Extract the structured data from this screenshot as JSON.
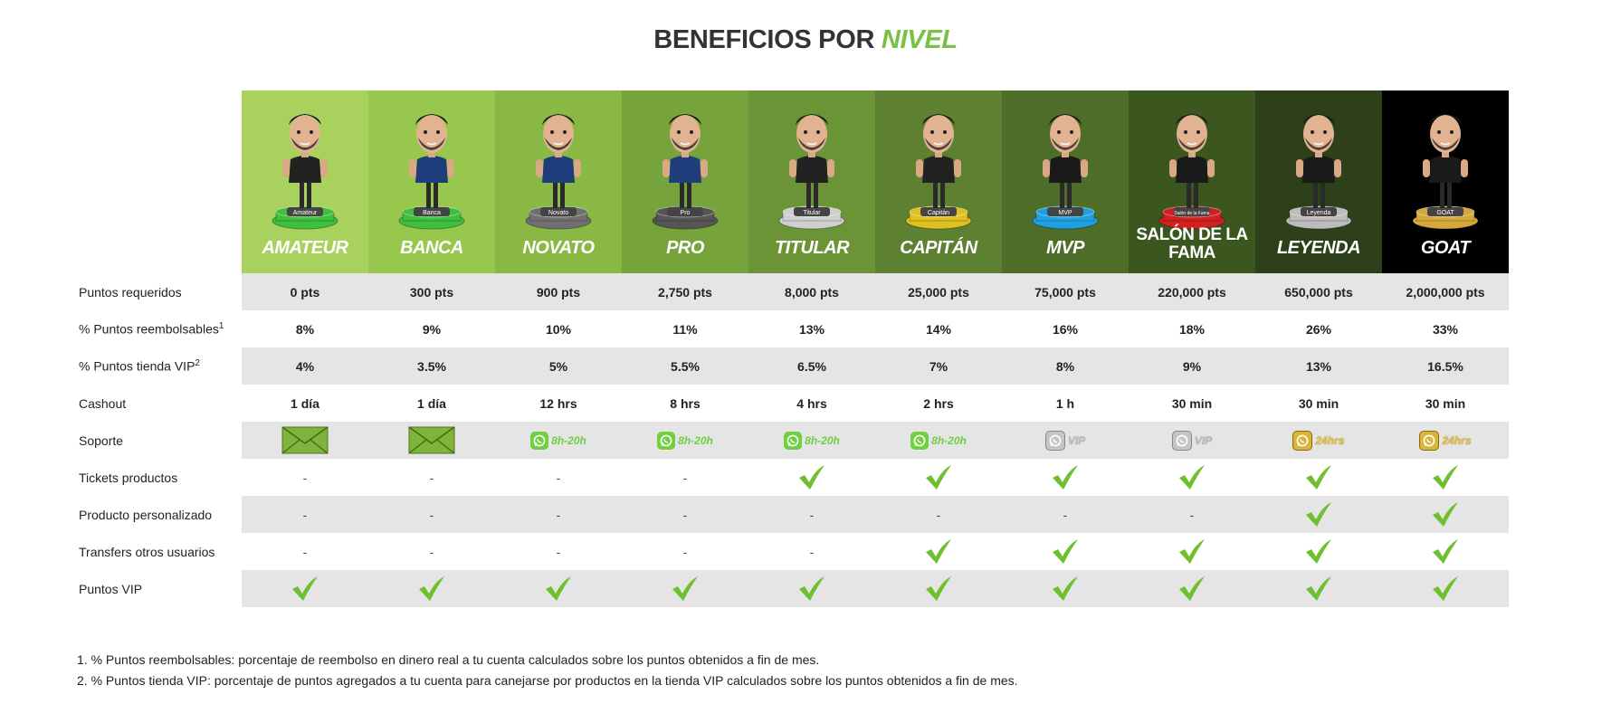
{
  "title": {
    "prefix": "BENEFICIOS POR",
    "accent": "NIVEL"
  },
  "levels": [
    {
      "name": "AMATEUR",
      "plate": "Amateur",
      "bg": "#a9d15e",
      "base": "#3fbf3f"
    },
    {
      "name": "BANCA",
      "plate": "Banca",
      "bg": "#97c84d",
      "base": "#3fbf3f"
    },
    {
      "name": "NOVATO",
      "plate": "Novato",
      "bg": "#8ab845",
      "base": "#707070"
    },
    {
      "name": "PRO",
      "plate": "Pro",
      "bg": "#77a33c",
      "base": "#555555"
    },
    {
      "name": "TITULAR",
      "plate": "Titular",
      "bg": "#6b9436",
      "base": "#cfcfcf"
    },
    {
      "name": "CAPITÁN",
      "plate": "Capitán",
      "bg": "#5d8130",
      "base": "#e0c020"
    },
    {
      "name": "MVP",
      "plate": "MVP",
      "bg": "#4d6d28",
      "base": "#1fa0e0"
    },
    {
      "name": "SALÓN DE LA FAMA",
      "plate": "Salón de la Fama",
      "bg": "#3c5620",
      "base": "#d02020"
    },
    {
      "name": "LEYENDA",
      "plate": "Leyenda",
      "bg": "#2d4019",
      "base": "#bcbcbc"
    },
    {
      "name": "GOAT",
      "plate": "GOAT",
      "bg": "#000000",
      "base": "#d4a83a"
    }
  ],
  "rows": {
    "points": {
      "label": "Puntos requeridos",
      "values": [
        "0 pts",
        "300 pts",
        "900 pts",
        "2,750 pts",
        "8,000 pts",
        "25,000 pts",
        "75,000 pts",
        "220,000 pts",
        "650,000 pts",
        "2,000,000 pts"
      ]
    },
    "refund": {
      "label": "% Puntos reembolsables",
      "sup": "1",
      "values": [
        "8%",
        "9%",
        "10%",
        "11%",
        "13%",
        "14%",
        "16%",
        "18%",
        "26%",
        "33%"
      ]
    },
    "vip_store": {
      "label": "% Puntos tienda VIP",
      "sup": "2",
      "values": [
        "4%",
        "3.5%",
        "5%",
        "5.5%",
        "6.5%",
        "7%",
        "8%",
        "9%",
        "13%",
        "16.5%"
      ]
    },
    "cashout": {
      "label": "Cashout",
      "values": [
        "1 día",
        "1 día",
        "12 hrs",
        "8 hrs",
        "4 hrs",
        "2 hrs",
        "1 h",
        "30 min",
        "30 min",
        "30 min"
      ]
    },
    "support": {
      "label": "Soporte",
      "values": [
        {
          "icon": "envelope-icon"
        },
        {
          "icon": "envelope-icon"
        },
        {
          "icon": "whatsapp-icon",
          "text": "8h-20h",
          "color": "#6fcf3f"
        },
        {
          "icon": "whatsapp-icon",
          "text": "8h-20h",
          "color": "#6fcf3f"
        },
        {
          "icon": "whatsapp-icon",
          "text": "8h-20h",
          "color": "#6fcf3f"
        },
        {
          "icon": "whatsapp-icon",
          "text": "8h-20h",
          "color": "#6fcf3f"
        },
        {
          "icon": "whatsapp-icon",
          "text": "VIP",
          "color": "#bbbbbb"
        },
        {
          "icon": "whatsapp-icon",
          "text": "VIP",
          "color": "#bbbbbb"
        },
        {
          "icon": "whatsapp-icon",
          "text": "24hrs",
          "color": "#e6c24a"
        },
        {
          "icon": "whatsapp-icon",
          "text": "24hrs",
          "color": "#e6c24a"
        }
      ]
    },
    "tickets": {
      "label": "Tickets productos",
      "values": [
        "-",
        "-",
        "-",
        "-",
        true,
        true,
        true,
        true,
        true,
        true
      ]
    },
    "custom": {
      "label": "Producto personalizado",
      "values": [
        "-",
        "-",
        "-",
        "-",
        "-",
        "-",
        "-",
        "-",
        true,
        true
      ]
    },
    "transfers": {
      "label": "Transfers otros usuarios",
      "values": [
        "-",
        "-",
        "-",
        "-",
        "-",
        true,
        true,
        true,
        true,
        true
      ]
    },
    "vip_points": {
      "label": "Puntos VIP",
      "values": [
        true,
        true,
        true,
        true,
        true,
        true,
        true,
        true,
        true,
        true
      ]
    }
  },
  "notes": [
    "1. % Puntos reembolsables: porcentaje de reembolso en dinero real a tu cuenta calculados sobre los puntos obtenidos a fin de mes.",
    "2. % Puntos tienda VIP: porcentaje de puntos agregados a tu cuenta para canejarse por productos en la tienda VIP calculados sobre los puntos obtenidos a fin de mes."
  ],
  "colors": {
    "accent": "#7ac043",
    "check": "#6fbf2f",
    "shade": "#e5e5e5"
  }
}
